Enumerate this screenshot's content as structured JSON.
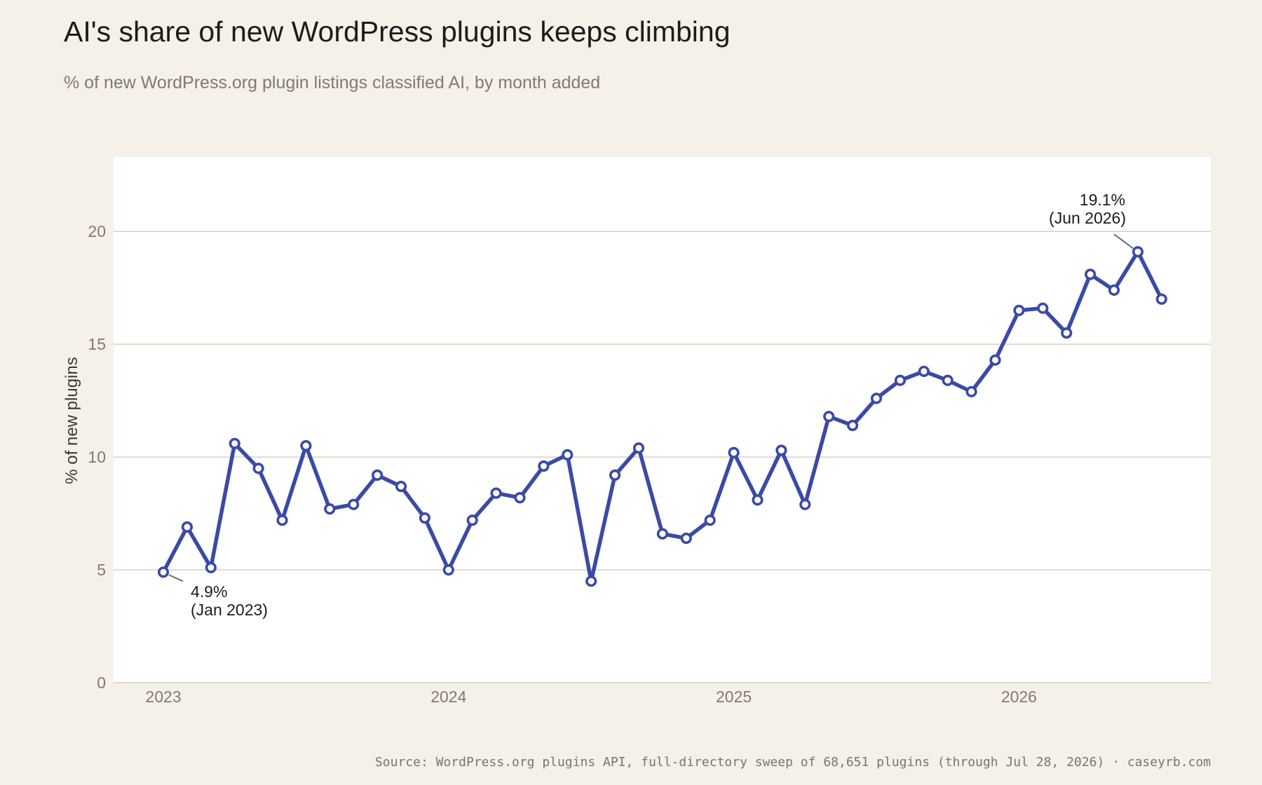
{
  "header": {
    "title": "AI's share of new WordPress plugins keeps climbing",
    "subtitle": "% of new WordPress.org plugin listings classified AI, by month added"
  },
  "footer": {
    "source": "Source: WordPress.org plugins API, full-directory sweep of 68,651 plugins (through Jul 28, 2026) · caseyrb.com"
  },
  "colors": {
    "line": "#3a4aa6",
    "marker_fill": "#ffffff",
    "plot_bg": "#ffffff",
    "page_bg": "#f5f1e9",
    "grid": "#d5d0c4",
    "tick_text": "#807a70",
    "annotation_text": "#1c1c1c",
    "leader": "#6b6b6b"
  },
  "chart_data": {
    "type": "line",
    "title": "AI's share of new WordPress plugins keeps climbing",
    "subtitle": "% of new WordPress.org plugin listings classified AI, by month added",
    "xlabel": "",
    "ylabel": "% of new plugins",
    "ylim": [
      0,
      23.3
    ],
    "yticks": [
      0,
      5,
      10,
      15,
      20
    ],
    "xticks": [
      {
        "label": "2023",
        "x": "2023-01"
      },
      {
        "label": "2024",
        "x": "2024-01"
      },
      {
        "label": "2025",
        "x": "2025-01"
      },
      {
        "label": "2026",
        "x": "2026-01"
      }
    ],
    "grid": "horizontal",
    "x": [
      "2023-01",
      "2023-02",
      "2023-03",
      "2023-04",
      "2023-05",
      "2023-06",
      "2023-07",
      "2023-08",
      "2023-09",
      "2023-10",
      "2023-11",
      "2023-12",
      "2024-01",
      "2024-02",
      "2024-03",
      "2024-04",
      "2024-05",
      "2024-06",
      "2024-07",
      "2024-08",
      "2024-09",
      "2024-10",
      "2024-11",
      "2024-12",
      "2025-01",
      "2025-02",
      "2025-03",
      "2025-04",
      "2025-05",
      "2025-06",
      "2025-07",
      "2025-08",
      "2025-09",
      "2025-10",
      "2025-11",
      "2025-12",
      "2026-01",
      "2026-02",
      "2026-03",
      "2026-04",
      "2026-05",
      "2026-06",
      "2026-07"
    ],
    "series": [
      {
        "values": [
          4.9,
          6.9,
          5.1,
          10.6,
          9.5,
          7.2,
          10.5,
          7.7,
          7.9,
          9.2,
          8.7,
          7.3,
          5.0,
          7.2,
          8.4,
          8.2,
          9.6,
          10.1,
          4.5,
          9.2,
          10.4,
          6.6,
          6.4,
          7.2,
          10.2,
          8.1,
          10.3,
          7.9,
          11.8,
          11.4,
          12.6,
          13.4,
          13.8,
          13.4,
          12.9,
          14.3,
          16.5,
          16.6,
          15.5,
          18.1,
          17.4,
          19.1,
          17.0
        ]
      }
    ],
    "annotations": [
      {
        "x": "2023-01",
        "y": 4.9,
        "line1": "4.9%",
        "line2": "(Jan 2023)"
      },
      {
        "x": "2026-06",
        "y": 19.1,
        "line1": "19.1%",
        "line2": "(Jun 2026)"
      }
    ]
  }
}
